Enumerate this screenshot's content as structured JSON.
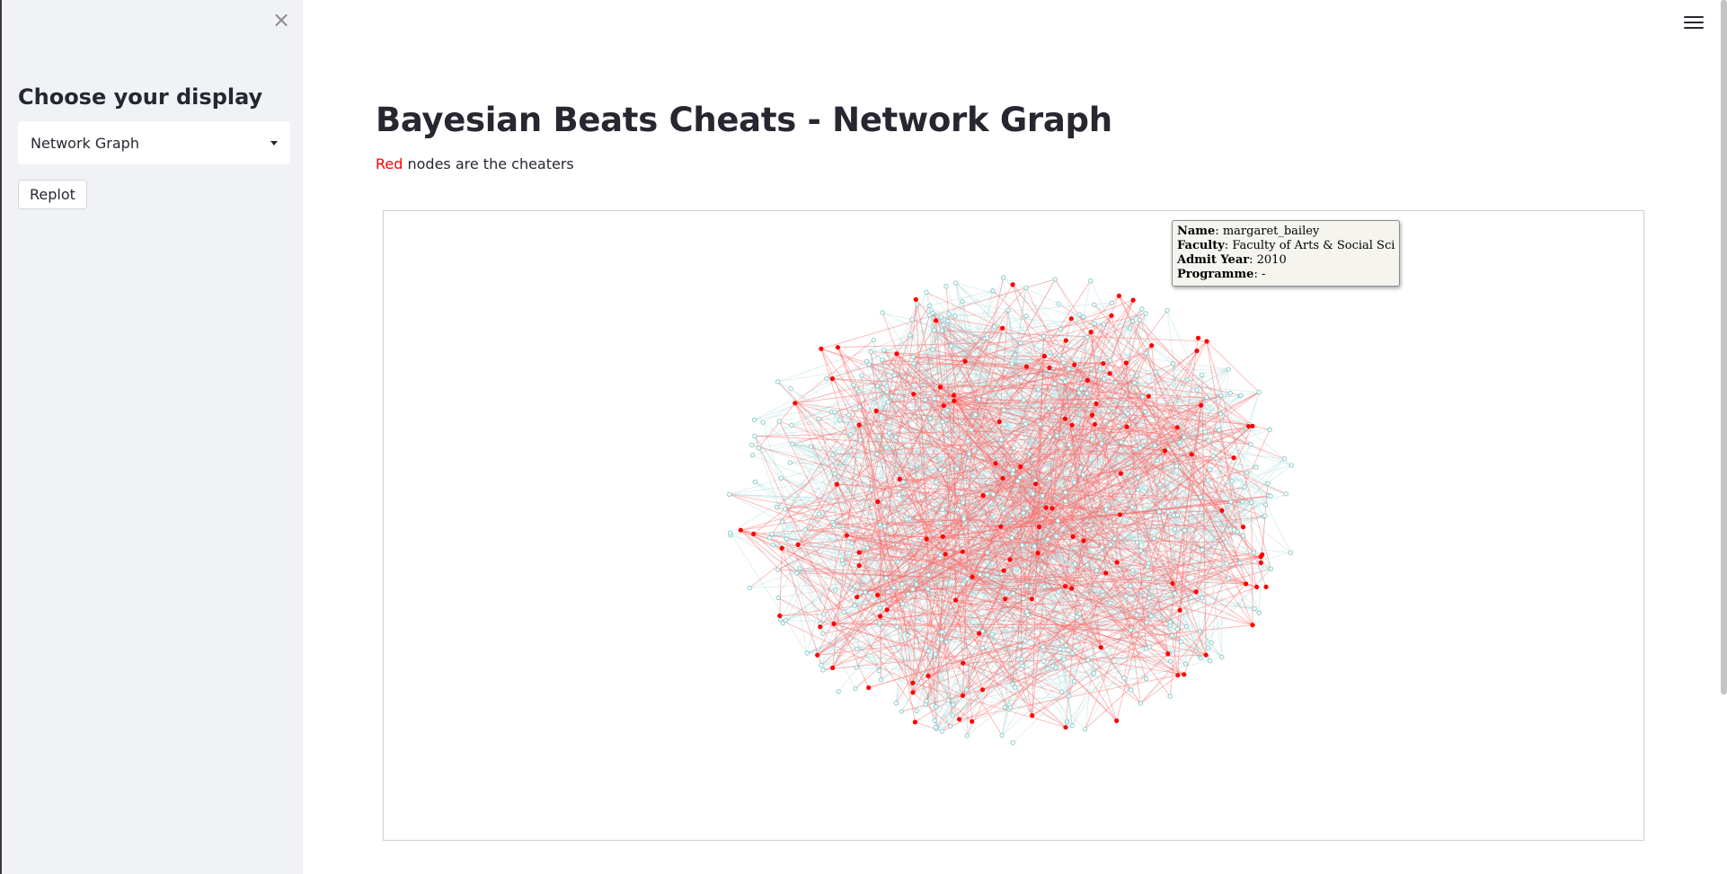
{
  "sidebar": {
    "close_icon": "close-icon",
    "heading": "Choose your display",
    "select_value": "Network Graph",
    "replot_label": "Replot"
  },
  "header": {
    "menu_icon": "hamburger-menu-icon"
  },
  "main": {
    "title": "Bayesian Beats Cheats - Network Graph",
    "subtitle_red": "Red",
    "subtitle_rest": " nodes are the cheaters"
  },
  "graph": {
    "tooltip": {
      "name_label": "Name",
      "name_value": "margaret_bailey",
      "faculty_label": "Faculty",
      "faculty_value": "Faculty of Arts & Social Sci",
      "admit_label": "Admit Year",
      "admit_value": "2010",
      "programme_label": "Programme",
      "programme_value": "-"
    },
    "colors": {
      "cheater": "#ff0000",
      "normal_node": "#7fc9c9",
      "normal_edge": "#a9d4d6",
      "cheater_edge": "#ff6b6b"
    }
  }
}
